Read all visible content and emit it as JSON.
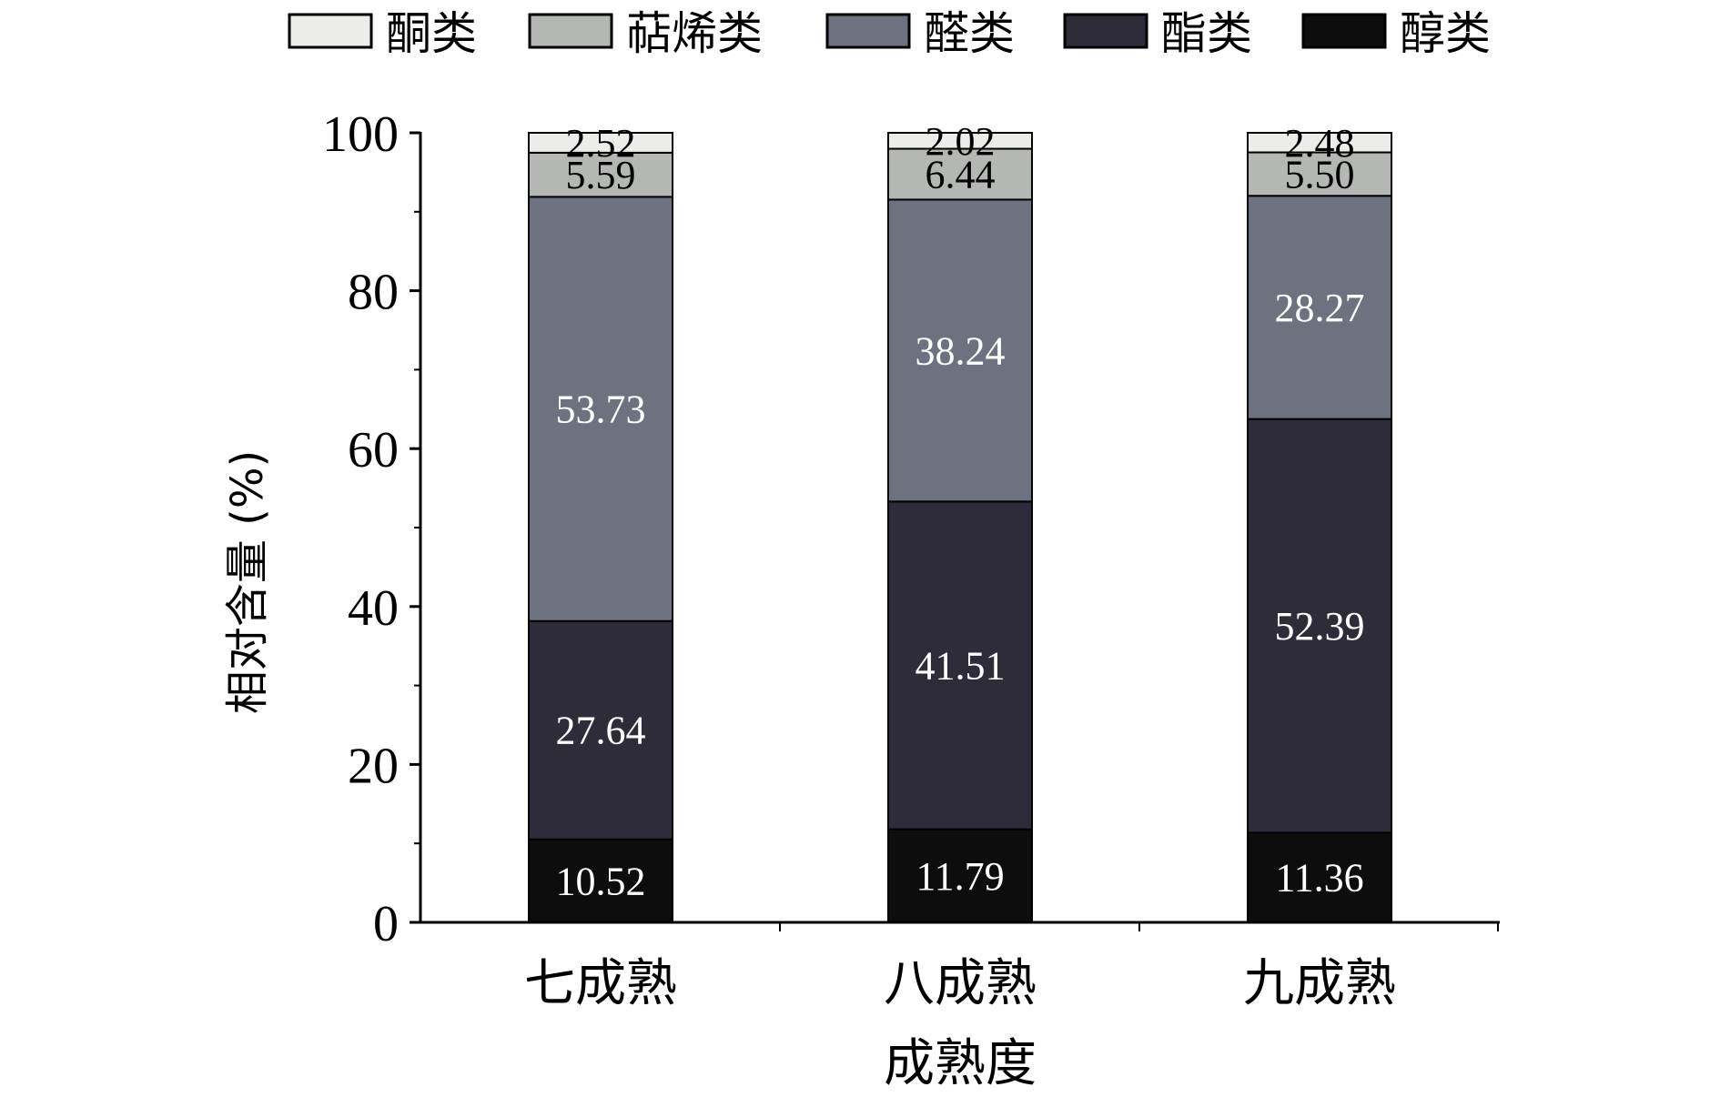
{
  "chart_data": {
    "type": "bar",
    "stacked": true,
    "categories": [
      "七成熟",
      "八成熟",
      "九成熟"
    ],
    "series": [
      {
        "name": "醇类",
        "color": "#0d0d0d",
        "label_color": "#ffffff",
        "values": [
          10.52,
          11.79,
          11.36
        ],
        "labels": [
          "10.52",
          "11.79",
          "11.36"
        ]
      },
      {
        "name": "酯类",
        "color": "#2e2c38",
        "label_color": "#ffffff",
        "values": [
          27.64,
          41.51,
          52.39
        ],
        "labels": [
          "27.64",
          "41.51",
          "52.39"
        ]
      },
      {
        "name": "醛类",
        "color": "#6e7280",
        "label_color": "#ffffff",
        "values": [
          53.73,
          38.24,
          28.27
        ],
        "labels": [
          "53.73",
          "38.24",
          "28.27"
        ]
      },
      {
        "name": "萜烯类",
        "color": "#b4b7b4",
        "label_color": "#000000",
        "values": [
          5.59,
          6.44,
          5.5
        ],
        "labels": [
          "5.59",
          "6.44",
          "5.50"
        ]
      },
      {
        "name": "酮类",
        "color": "#ecedea",
        "label_color": "#000000",
        "values": [
          2.52,
          2.02,
          2.48
        ],
        "labels": [
          "2.52",
          "2.02",
          "2.48"
        ]
      }
    ],
    "legend_order": [
      "酮类",
      "萜烯类",
      "醛类",
      "酯类",
      "醇类"
    ],
    "legend_position": "top",
    "xlabel": "成熟度",
    "ylabel": "相对含量 (%)",
    "ylim": [
      0,
      100
    ],
    "yticks": [
      0,
      20,
      40,
      60,
      80,
      100
    ],
    "ytick_labels": [
      "0",
      "20",
      "40",
      "60",
      "80",
      "100"
    ],
    "grid": false
  }
}
